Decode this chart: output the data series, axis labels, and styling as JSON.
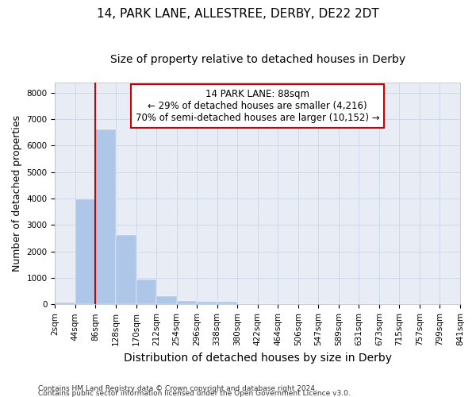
{
  "title_line1": "14, PARK LANE, ALLESTREE, DERBY, DE22 2DT",
  "title_line2": "Size of property relative to detached houses in Derby",
  "xlabel": "Distribution of detached houses by size in Derby",
  "ylabel": "Number of detached properties",
  "footer_line1": "Contains HM Land Registry data © Crown copyright and database right 2024.",
  "footer_line2": "Contains public sector information licensed under the Open Government Licence v3.0.",
  "annotation_line1": "14 PARK LANE: 88sqm",
  "annotation_line2": "← 29% of detached houses are smaller (4,216)",
  "annotation_line3": "70% of semi-detached houses are larger (10,152) →",
  "bar_values": [
    75,
    3975,
    6600,
    2625,
    950,
    300,
    125,
    100,
    90,
    0,
    0,
    0,
    0,
    0,
    0,
    0,
    0,
    0,
    0,
    0
  ],
  "bin_labels": [
    "2sqm",
    "44sqm",
    "86sqm",
    "128sqm",
    "170sqm",
    "212sqm",
    "254sqm",
    "296sqm",
    "338sqm",
    "380sqm",
    "422sqm",
    "464sqm",
    "506sqm",
    "547sqm",
    "589sqm",
    "631sqm",
    "673sqm",
    "715sqm",
    "757sqm",
    "799sqm",
    "841sqm"
  ],
  "bar_color": "#aec6e8",
  "grid_color": "#d0d8ea",
  "bg_color": "#e8edf5",
  "marker_color": "#cc0000",
  "ylim": [
    0,
    8400
  ],
  "annotation_box_color": "#cc0000",
  "title_fontsize": 11,
  "subtitle_fontsize": 10,
  "ylabel_fontsize": 9,
  "xlabel_fontsize": 10,
  "tick_fontsize": 7.5,
  "annotation_fontsize": 8.5,
  "footer_fontsize": 6.5
}
